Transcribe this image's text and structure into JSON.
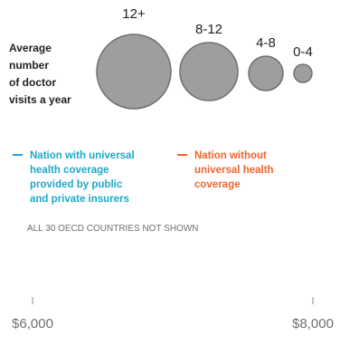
{
  "chart_data": {
    "type": "scatter",
    "title": "",
    "size_legend": {
      "title_lines": [
        "Average",
        "number",
        "of doctor",
        "visits a year"
      ],
      "categories": [
        "12+",
        "8-12",
        "4-8",
        "0-4"
      ]
    },
    "color_legend": [
      {
        "name_lines": [
          "Nation with universal",
          "health coverage",
          "provided by public",
          "and private insurers"
        ],
        "color": "#1ea8c8"
      },
      {
        "name_lines": [
          "Nation without",
          "universal health",
          "coverage"
        ],
        "color": "#f0642d"
      }
    ],
    "note": "ALL 30 OECD COUNTRIES NOT SHOWN",
    "x_axis": {
      "ticks": [
        6000,
        8000
      ],
      "tick_labels": [
        "$6,000",
        "$8,000"
      ]
    },
    "series": [],
    "colors": {
      "bubble_fill": "#9d9ea0",
      "bubble_stroke": "#6e6f71",
      "text": "#222222",
      "muted": "#707070",
      "axis_tick": "#888888"
    }
  }
}
